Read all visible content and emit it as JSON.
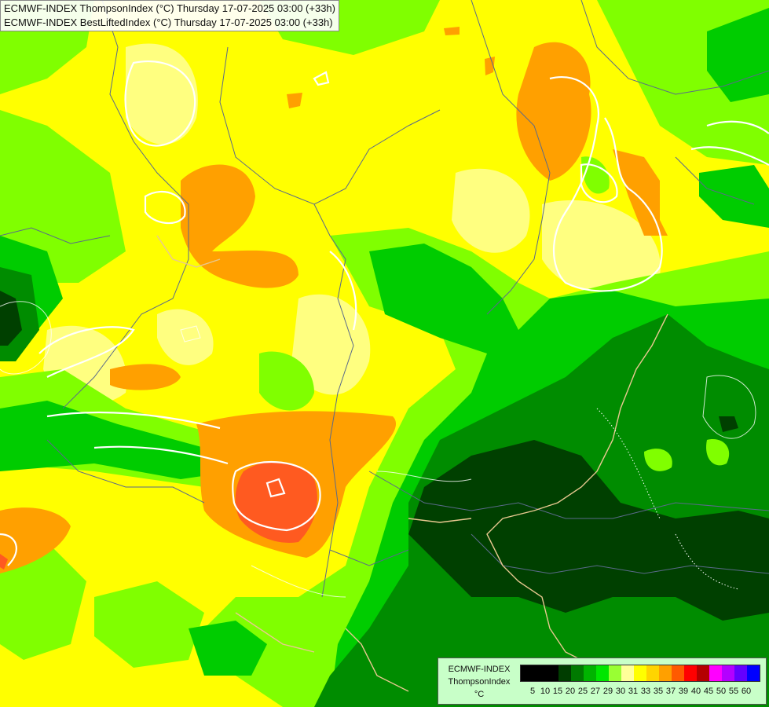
{
  "titles": [
    "ECMWF-INDEX ThompsonIndex (°C) Thursday 17-07-2025 03:00 (+33h)",
    "ECMWF-INDEX BestLiftedIndex (°C) Thursday 17-07-2025 03:00 (+33h)"
  ],
  "legend": {
    "model": "ECMWF-INDEX",
    "parameter": "ThompsonIndex",
    "unit": "°C",
    "levels": [
      "5",
      "10",
      "15",
      "20",
      "25",
      "27",
      "29",
      "30",
      "31",
      "33",
      "35",
      "37",
      "39",
      "40",
      "45",
      "50",
      "55",
      "60"
    ],
    "colors": [
      "#000000",
      "#000000",
      "#000000",
      "#003d00",
      "#007a00",
      "#00b400",
      "#00e600",
      "#99ff33",
      "#ffff99",
      "#ffff00",
      "#ffd400",
      "#ffa000",
      "#ff5a00",
      "#ff0000",
      "#b40000",
      "#ff00ff",
      "#b400ff",
      "#6400ff",
      "#0000ff"
    ]
  },
  "field_colors": {
    "dark_green": "#004000",
    "mid_green": "#008c00",
    "green": "#00cc00",
    "lime": "#7fff00",
    "light_yellow": "#ffff80",
    "yellow": "#ffff00",
    "orange": "#ffa020",
    "red_orange": "#ff5a20"
  }
}
